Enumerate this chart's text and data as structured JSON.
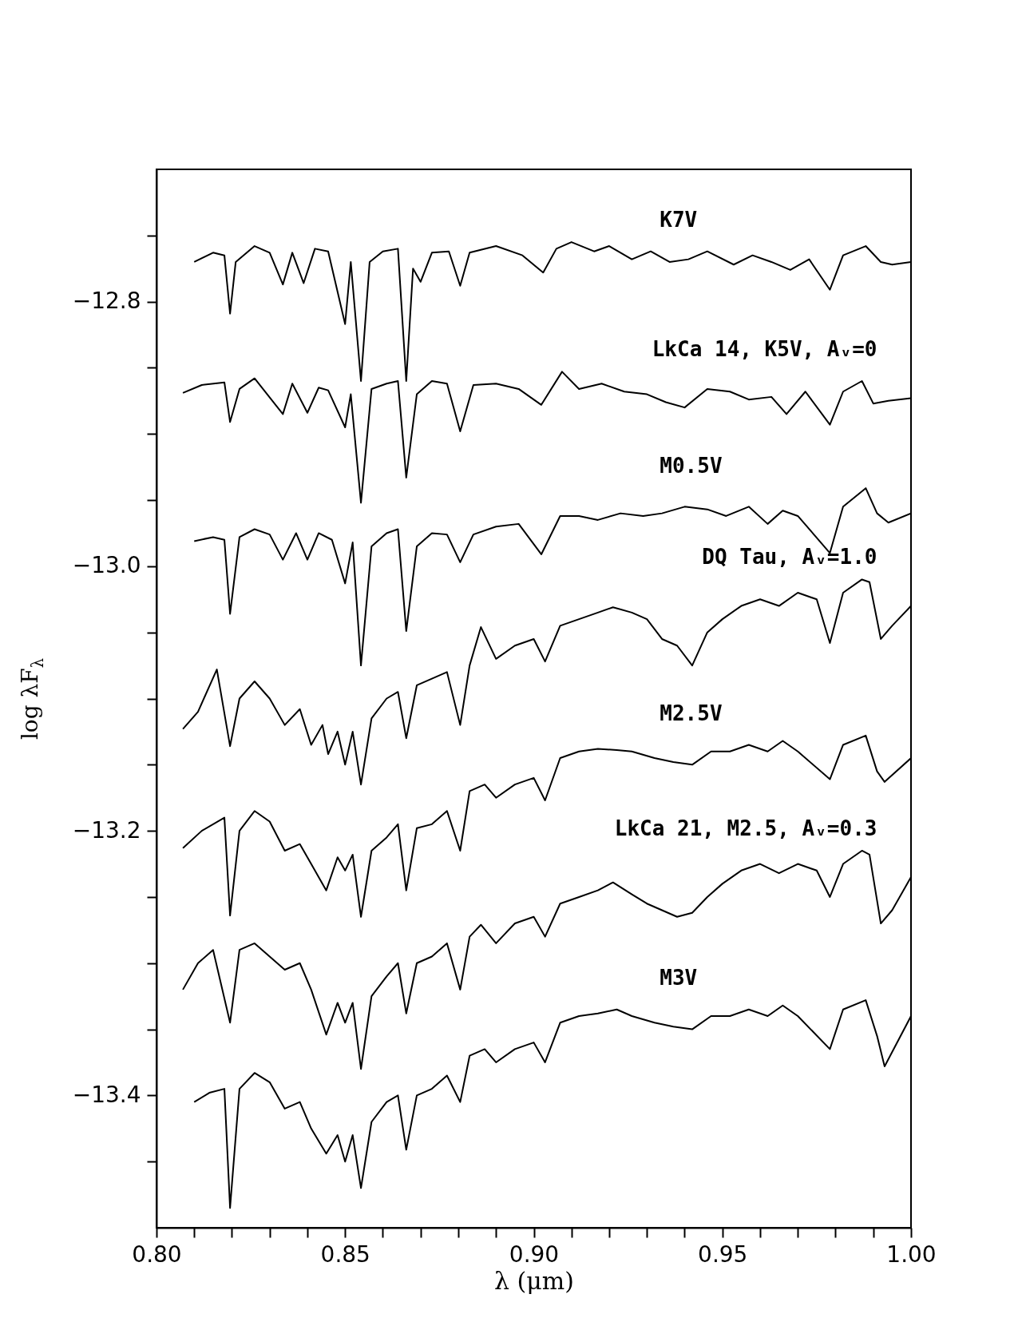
{
  "chart_data": {
    "type": "line",
    "xlabel": "λ (μm)",
    "ylabel": "log λF$_{λ}$",
    "xlim": [
      0.8,
      1.0
    ],
    "ylim": [
      -13.5,
      -12.7
    ],
    "xticks": [
      {
        "value": 0.8,
        "label": "0.80"
      },
      {
        "value": 0.81,
        "label": null
      },
      {
        "value": 0.82,
        "label": null
      },
      {
        "value": 0.83,
        "label": null
      },
      {
        "value": 0.84,
        "label": null
      },
      {
        "value": 0.85,
        "label": "0.85"
      },
      {
        "value": 0.86,
        "label": null
      },
      {
        "value": 0.87,
        "label": null
      },
      {
        "value": 0.88,
        "label": null
      },
      {
        "value": 0.89,
        "label": null
      },
      {
        "value": 0.9,
        "label": "0.90"
      },
      {
        "value": 0.91,
        "label": null
      },
      {
        "value": 0.92,
        "label": null
      },
      {
        "value": 0.93,
        "label": null
      },
      {
        "value": 0.94,
        "label": null
      },
      {
        "value": 0.95,
        "label": "0.95"
      },
      {
        "value": 0.96,
        "label": null
      },
      {
        "value": 0.97,
        "label": null
      },
      {
        "value": 0.98,
        "label": null
      },
      {
        "value": 0.99,
        "label": null
      },
      {
        "value": 1.0,
        "label": "1.00"
      }
    ],
    "yticks": [
      {
        "value": -12.75,
        "label": null
      },
      {
        "value": -12.8,
        "label": "−12.8"
      },
      {
        "value": -12.85,
        "label": null
      },
      {
        "value": -12.9,
        "label": null
      },
      {
        "value": -12.95,
        "label": null
      },
      {
        "value": -13.0,
        "label": "−13.0"
      },
      {
        "value": -13.05,
        "label": null
      },
      {
        "value": -13.1,
        "label": null
      },
      {
        "value": -13.15,
        "label": null
      },
      {
        "value": -13.2,
        "label": "−13.2"
      },
      {
        "value": -13.25,
        "label": null
      },
      {
        "value": -13.3,
        "label": null
      },
      {
        "value": -13.35,
        "label": null
      },
      {
        "value": -13.4,
        "label": "−13.4"
      },
      {
        "value": -13.45,
        "label": null
      }
    ],
    "series": [
      {
        "name": "K7V",
        "color": "#000000",
        "x": [
          0.81,
          0.815,
          0.818,
          0.8195,
          0.821,
          0.826,
          0.83,
          0.8335,
          0.836,
          0.839,
          0.842,
          0.8455,
          0.85,
          0.8515,
          0.8542,
          0.8565,
          0.86,
          0.864,
          0.8662,
          0.868,
          0.87,
          0.873,
          0.8775,
          0.8805,
          0.883,
          0.89,
          0.897,
          0.9025,
          0.906,
          0.91,
          0.916,
          0.92,
          0.926,
          0.931,
          0.936,
          0.941,
          0.946,
          0.953,
          0.958,
          0.963,
          0.968,
          0.973,
          0.9785,
          0.982,
          0.988,
          0.992,
          0.995,
          1.0
        ],
        "values": [
          -12.77,
          -12.763,
          -12.765,
          -12.809,
          -12.77,
          -12.758,
          -12.763,
          -12.787,
          -12.763,
          -12.786,
          -12.76,
          -12.762,
          -12.817,
          -12.77,
          -12.86,
          -12.77,
          -12.762,
          -12.76,
          -12.86,
          -12.775,
          -12.785,
          -12.763,
          -12.762,
          -12.788,
          -12.763,
          -12.758,
          -12.765,
          -12.778,
          -12.76,
          -12.755,
          -12.762,
          -12.758,
          -12.768,
          -12.762,
          -12.77,
          -12.768,
          -12.762,
          -12.772,
          -12.765,
          -12.77,
          -12.776,
          -12.768,
          -12.791,
          -12.765,
          -12.758,
          -12.77,
          -12.772,
          -12.77
        ]
      },
      {
        "name": "LkCa 14, K5V, Aᵥ=0",
        "color": "#000000",
        "x": [
          0.807,
          0.812,
          0.818,
          0.8195,
          0.822,
          0.826,
          0.8335,
          0.836,
          0.84,
          0.843,
          0.8455,
          0.85,
          0.8515,
          0.8542,
          0.857,
          0.861,
          0.864,
          0.8662,
          0.869,
          0.873,
          0.877,
          0.8805,
          0.884,
          0.89,
          0.896,
          0.902,
          0.9075,
          0.912,
          0.918,
          0.924,
          0.93,
          0.935,
          0.94,
          0.946,
          0.952,
          0.957,
          0.963,
          0.967,
          0.972,
          0.9785,
          0.982,
          0.987,
          0.99,
          0.994,
          1.0
        ],
        "values": [
          -12.869,
          -12.863,
          -12.861,
          -12.891,
          -12.866,
          -12.858,
          -12.885,
          -12.862,
          -12.884,
          -12.865,
          -12.867,
          -12.895,
          -12.87,
          -12.952,
          -12.866,
          -12.862,
          -12.86,
          -12.933,
          -12.87,
          -12.86,
          -12.862,
          -12.898,
          -12.863,
          -12.862,
          -12.866,
          -12.878,
          -12.853,
          -12.866,
          -12.862,
          -12.868,
          -12.87,
          -12.876,
          -12.88,
          -12.866,
          -12.868,
          -12.874,
          -12.872,
          -12.885,
          -12.868,
          -12.893,
          -12.868,
          -12.86,
          -12.877,
          -12.875,
          -12.873
        ]
      },
      {
        "name": "M0.5V",
        "color": "#000000",
        "x": [
          0.81,
          0.815,
          0.818,
          0.8195,
          0.822,
          0.826,
          0.83,
          0.8335,
          0.837,
          0.84,
          0.843,
          0.8465,
          0.85,
          0.852,
          0.8542,
          0.857,
          0.861,
          0.864,
          0.8662,
          0.869,
          0.873,
          0.877,
          0.8805,
          0.884,
          0.89,
          0.896,
          0.902,
          0.907,
          0.912,
          0.917,
          0.923,
          0.929,
          0.934,
          0.94,
          0.946,
          0.951,
          0.957,
          0.962,
          0.966,
          0.97,
          0.9785,
          0.982,
          0.988,
          0.991,
          0.994,
          1.0
        ],
        "values": [
          -12.981,
          -12.978,
          -12.98,
          -13.036,
          -12.978,
          -12.972,
          -12.976,
          -12.995,
          -12.975,
          -12.995,
          -12.975,
          -12.98,
          -13.013,
          -12.982,
          -13.075,
          -12.985,
          -12.975,
          -12.972,
          -13.049,
          -12.985,
          -12.975,
          -12.976,
          -12.997,
          -12.976,
          -12.97,
          -12.968,
          -12.991,
          -12.962,
          -12.962,
          -12.965,
          -12.96,
          -12.962,
          -12.96,
          -12.955,
          -12.957,
          -12.962,
          -12.955,
          -12.968,
          -12.958,
          -12.962,
          -12.99,
          -12.955,
          -12.941,
          -12.96,
          -12.967,
          -12.96
        ]
      },
      {
        "name": "DQ Tau, Aᵥ=1.0",
        "color": "#000000",
        "x": [
          0.807,
          0.811,
          0.816,
          0.8195,
          0.822,
          0.826,
          0.83,
          0.834,
          0.838,
          0.841,
          0.844,
          0.8455,
          0.848,
          0.85,
          0.852,
          0.8542,
          0.857,
          0.861,
          0.864,
          0.8662,
          0.869,
          0.873,
          0.877,
          0.8805,
          0.883,
          0.886,
          0.89,
          0.895,
          0.9,
          0.903,
          0.907,
          0.912,
          0.917,
          0.921,
          0.926,
          0.93,
          0.934,
          0.938,
          0.942,
          0.946,
          0.95,
          0.955,
          0.96,
          0.965,
          0.97,
          0.975,
          0.9785,
          0.982,
          0.987,
          0.989,
          0.992,
          0.995,
          1.0
        ],
        "values": [
          -13.123,
          -13.11,
          -13.078,
          -13.136,
          -13.1,
          -13.087,
          -13.1,
          -13.12,
          -13.108,
          -13.135,
          -13.12,
          -13.142,
          -13.125,
          -13.15,
          -13.125,
          -13.165,
          -13.115,
          -13.1,
          -13.095,
          -13.13,
          -13.09,
          -13.085,
          -13.08,
          -13.12,
          -13.075,
          -13.046,
          -13.07,
          -13.06,
          -13.055,
          -13.072,
          -13.045,
          -13.04,
          -13.035,
          -13.031,
          -13.035,
          -13.04,
          -13.055,
          -13.06,
          -13.075,
          -13.05,
          -13.04,
          -13.03,
          -13.025,
          -13.03,
          -13.02,
          -13.025,
          -13.058,
          -13.02,
          -13.01,
          -13.012,
          -13.055,
          -13.045,
          -13.03
        ]
      },
      {
        "name": "M2.5V",
        "color": "#000000",
        "x": [
          0.807,
          0.812,
          0.818,
          0.8195,
          0.822,
          0.826,
          0.83,
          0.834,
          0.838,
          0.841,
          0.845,
          0.848,
          0.85,
          0.852,
          0.8542,
          0.857,
          0.861,
          0.864,
          0.8662,
          0.869,
          0.873,
          0.877,
          0.8805,
          0.883,
          0.887,
          0.89,
          0.895,
          0.9,
          0.903,
          0.907,
          0.912,
          0.917,
          0.922,
          0.926,
          0.932,
          0.937,
          0.942,
          0.947,
          0.952,
          0.957,
          0.962,
          0.966,
          0.97,
          0.9785,
          0.982,
          0.988,
          0.991,
          0.993,
          1.0
        ],
        "values": [
          -13.213,
          -13.2,
          -13.19,
          -13.264,
          -13.2,
          -13.185,
          -13.193,
          -13.215,
          -13.21,
          -13.225,
          -13.245,
          -13.22,
          -13.23,
          -13.218,
          -13.265,
          -13.215,
          -13.205,
          -13.195,
          -13.245,
          -13.198,
          -13.195,
          -13.185,
          -13.215,
          -13.17,
          -13.165,
          -13.175,
          -13.165,
          -13.16,
          -13.177,
          -13.145,
          -13.14,
          -13.138,
          -13.139,
          -13.14,
          -13.145,
          -13.148,
          -13.15,
          -13.14,
          -13.14,
          -13.135,
          -13.14,
          -13.132,
          -13.14,
          -13.161,
          -13.135,
          -13.128,
          -13.155,
          -13.163,
          -13.145
        ]
      },
      {
        "name": "LkCa 21, M2.5, Aᵥ=0.3",
        "color": "#000000",
        "x": [
          0.807,
          0.811,
          0.815,
          0.8195,
          0.822,
          0.826,
          0.83,
          0.834,
          0.838,
          0.841,
          0.845,
          0.848,
          0.85,
          0.852,
          0.8542,
          0.857,
          0.861,
          0.864,
          0.8662,
          0.869,
          0.873,
          0.877,
          0.8805,
          0.883,
          0.886,
          0.89,
          0.895,
          0.9,
          0.903,
          0.907,
          0.912,
          0.917,
          0.921,
          0.926,
          0.93,
          0.934,
          0.938,
          0.942,
          0.946,
          0.95,
          0.955,
          0.96,
          0.965,
          0.97,
          0.975,
          0.9785,
          0.982,
          0.987,
          0.989,
          0.992,
          0.995,
          1.0
        ],
        "values": [
          -13.32,
          -13.3,
          -13.29,
          -13.345,
          -13.29,
          -13.285,
          -13.295,
          -13.305,
          -13.3,
          -13.32,
          -13.354,
          -13.33,
          -13.345,
          -13.33,
          -13.38,
          -13.325,
          -13.31,
          -13.3,
          -13.338,
          -13.3,
          -13.295,
          -13.285,
          -13.32,
          -13.28,
          -13.271,
          -13.285,
          -13.27,
          -13.265,
          -13.28,
          -13.255,
          -13.25,
          -13.245,
          -13.239,
          -13.248,
          -13.255,
          -13.26,
          -13.265,
          -13.262,
          -13.25,
          -13.24,
          -13.23,
          -13.225,
          -13.232,
          -13.225,
          -13.23,
          -13.25,
          -13.225,
          -13.215,
          -13.218,
          -13.27,
          -13.26,
          -13.235
        ]
      },
      {
        "name": "M3V",
        "color": "#000000",
        "x": [
          0.81,
          0.814,
          0.818,
          0.8195,
          0.822,
          0.826,
          0.83,
          0.834,
          0.838,
          0.841,
          0.845,
          0.848,
          0.85,
          0.852,
          0.8542,
          0.857,
          0.861,
          0.864,
          0.8662,
          0.869,
          0.873,
          0.877,
          0.8805,
          0.883,
          0.887,
          0.89,
          0.895,
          0.9,
          0.903,
          0.907,
          0.912,
          0.917,
          0.922,
          0.926,
          0.932,
          0.937,
          0.942,
          0.947,
          0.952,
          0.957,
          0.962,
          0.966,
          0.97,
          0.9785,
          0.982,
          0.988,
          0.991,
          0.993,
          1.0
        ],
        "values": [
          -13.405,
          -13.398,
          -13.395,
          -13.485,
          -13.395,
          -13.383,
          -13.39,
          -13.41,
          -13.405,
          -13.425,
          -13.444,
          -13.43,
          -13.45,
          -13.43,
          -13.47,
          -13.42,
          -13.405,
          -13.4,
          -13.441,
          -13.4,
          -13.395,
          -13.385,
          -13.405,
          -13.37,
          -13.365,
          -13.375,
          -13.365,
          -13.36,
          -13.375,
          -13.345,
          -13.34,
          -13.338,
          -13.335,
          -13.34,
          -13.345,
          -13.348,
          -13.35,
          -13.34,
          -13.34,
          -13.335,
          -13.34,
          -13.332,
          -13.34,
          -13.365,
          -13.335,
          -13.328,
          -13.355,
          -13.378,
          -13.34
        ]
      }
    ]
  }
}
